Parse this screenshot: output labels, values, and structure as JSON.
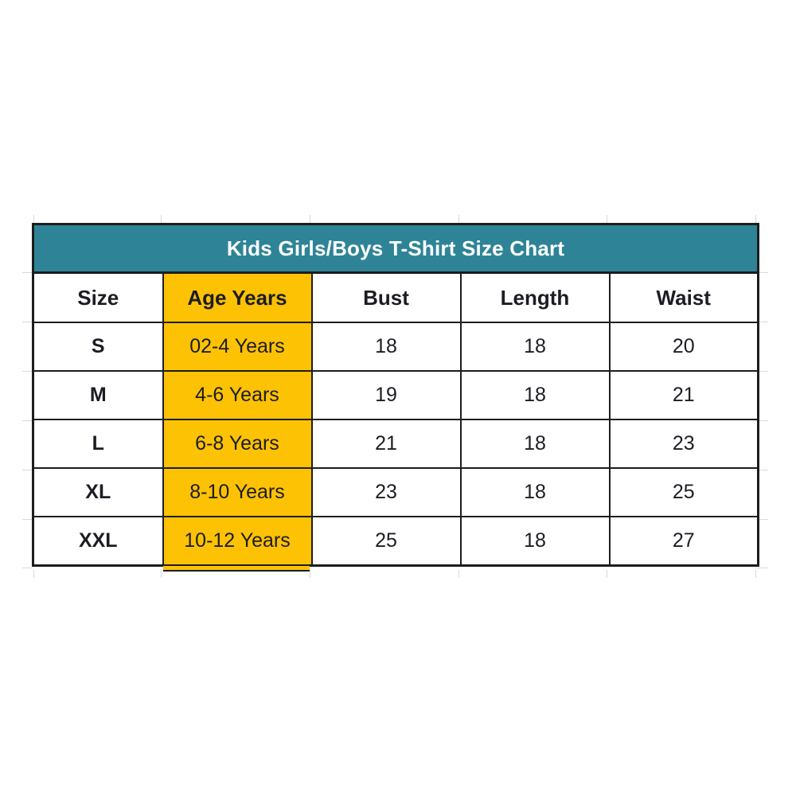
{
  "colors": {
    "page_bg": "#FFFFFF",
    "title_bg": "#2E8496",
    "title_text": "#FFFFFF",
    "highlight_bg": "#FCC203",
    "border": "#1D1D1D",
    "text": "#1C1C24",
    "gridline": "#D8D8D8"
  },
  "chart_data": {
    "type": "table",
    "title": "Kids Girls/Boys T-Shirt Size Chart",
    "columns": [
      "Size",
      "Age Years",
      "Bust",
      "Length",
      "Waist"
    ],
    "highlighted_column": "Age Years",
    "rows": [
      [
        "S",
        "02-4 Years",
        18,
        18,
        20
      ],
      [
        "M",
        "4-6 Years",
        19,
        18,
        21
      ],
      [
        "L",
        "6-8 Years",
        21,
        18,
        23
      ],
      [
        "XL",
        "8-10 Years",
        23,
        18,
        25
      ],
      [
        "XXL",
        "10-12 Years",
        25,
        18,
        27
      ]
    ]
  }
}
